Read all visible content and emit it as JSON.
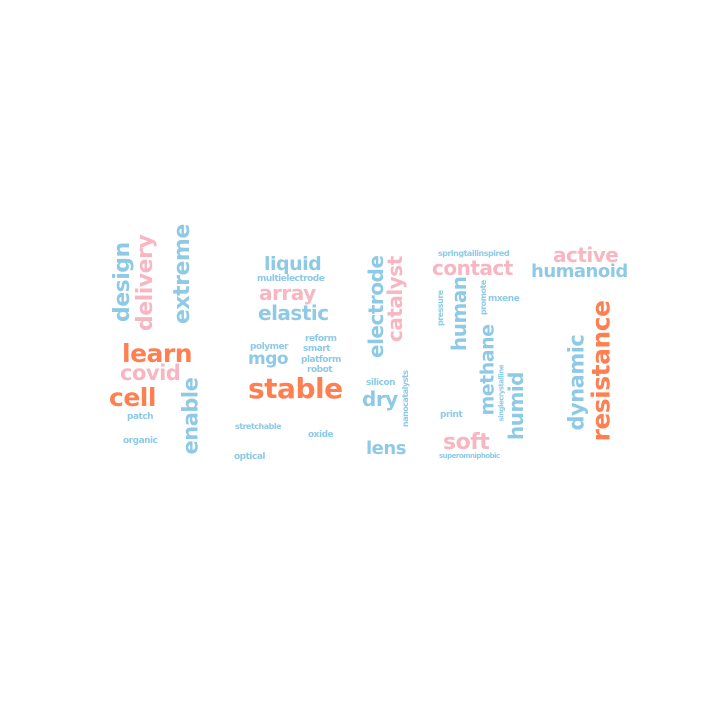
{
  "palette": {
    "blue": "#8ecae6",
    "pink": "#f7b6c2",
    "orange": "#ff7f50"
  },
  "words": {
    "design": {
      "text": "design",
      "color": "blue"
    },
    "delivery": {
      "text": "delivery",
      "color": "pink"
    },
    "extreme": {
      "text": "extreme",
      "color": "blue"
    },
    "learn": {
      "text": "learn",
      "color": "orange"
    },
    "covid": {
      "text": "covid",
      "color": "pink"
    },
    "cell": {
      "text": "cell",
      "color": "orange"
    },
    "enable": {
      "text": "enable",
      "color": "blue"
    },
    "patch": {
      "text": "patch",
      "color": "blue"
    },
    "organic": {
      "text": "organic",
      "color": "blue"
    },
    "liquid": {
      "text": "liquid",
      "color": "blue"
    },
    "multielectrode": {
      "text": "multielectrode",
      "color": "blue"
    },
    "array": {
      "text": "array",
      "color": "pink"
    },
    "elastic": {
      "text": "elastic",
      "color": "blue"
    },
    "polymer": {
      "text": "polymer",
      "color": "blue"
    },
    "reform": {
      "text": "reform",
      "color": "blue"
    },
    "mgo": {
      "text": "mgo",
      "color": "blue"
    },
    "smart": {
      "text": "smart",
      "color": "blue"
    },
    "platform": {
      "text": "platform",
      "color": "blue"
    },
    "robot": {
      "text": "robot",
      "color": "blue"
    },
    "stable": {
      "text": "stable",
      "color": "orange"
    },
    "stretchable": {
      "text": "stretchable",
      "color": "blue"
    },
    "oxide": {
      "text": "oxide",
      "color": "blue"
    },
    "optical": {
      "text": "optical",
      "color": "blue"
    },
    "electrode": {
      "text": "electrode",
      "color": "blue"
    },
    "catalyst": {
      "text": "catalyst",
      "color": "pink"
    },
    "silicon": {
      "text": "silicon",
      "color": "blue"
    },
    "dry": {
      "text": "dry",
      "color": "blue"
    },
    "nanocatalysts": {
      "text": "nanocatalysts",
      "color": "blue"
    },
    "lens": {
      "text": "lens",
      "color": "blue"
    },
    "springtailinspired": {
      "text": "springtailinspired",
      "color": "blue"
    },
    "contact": {
      "text": "contact",
      "color": "pink"
    },
    "pressure": {
      "text": "pressure",
      "color": "blue"
    },
    "human": {
      "text": "human",
      "color": "blue"
    },
    "promote": {
      "text": "promote",
      "color": "blue"
    },
    "mxene": {
      "text": "mxene",
      "color": "blue"
    },
    "methane": {
      "text": "methane",
      "color": "blue"
    },
    "singlecrystalline": {
      "text": "singlecrystalline",
      "color": "blue"
    },
    "humid": {
      "text": "humid",
      "color": "blue"
    },
    "print": {
      "text": "print",
      "color": "blue"
    },
    "soft": {
      "text": "soft",
      "color": "pink"
    },
    "superomniphobic": {
      "text": "superomniphobic",
      "color": "blue"
    },
    "active": {
      "text": "active",
      "color": "pink"
    },
    "humanoid": {
      "text": "humanoid",
      "color": "blue"
    },
    "dynamic": {
      "text": "dynamic",
      "color": "blue"
    },
    "resistance": {
      "text": "resistance",
      "color": "orange"
    }
  }
}
